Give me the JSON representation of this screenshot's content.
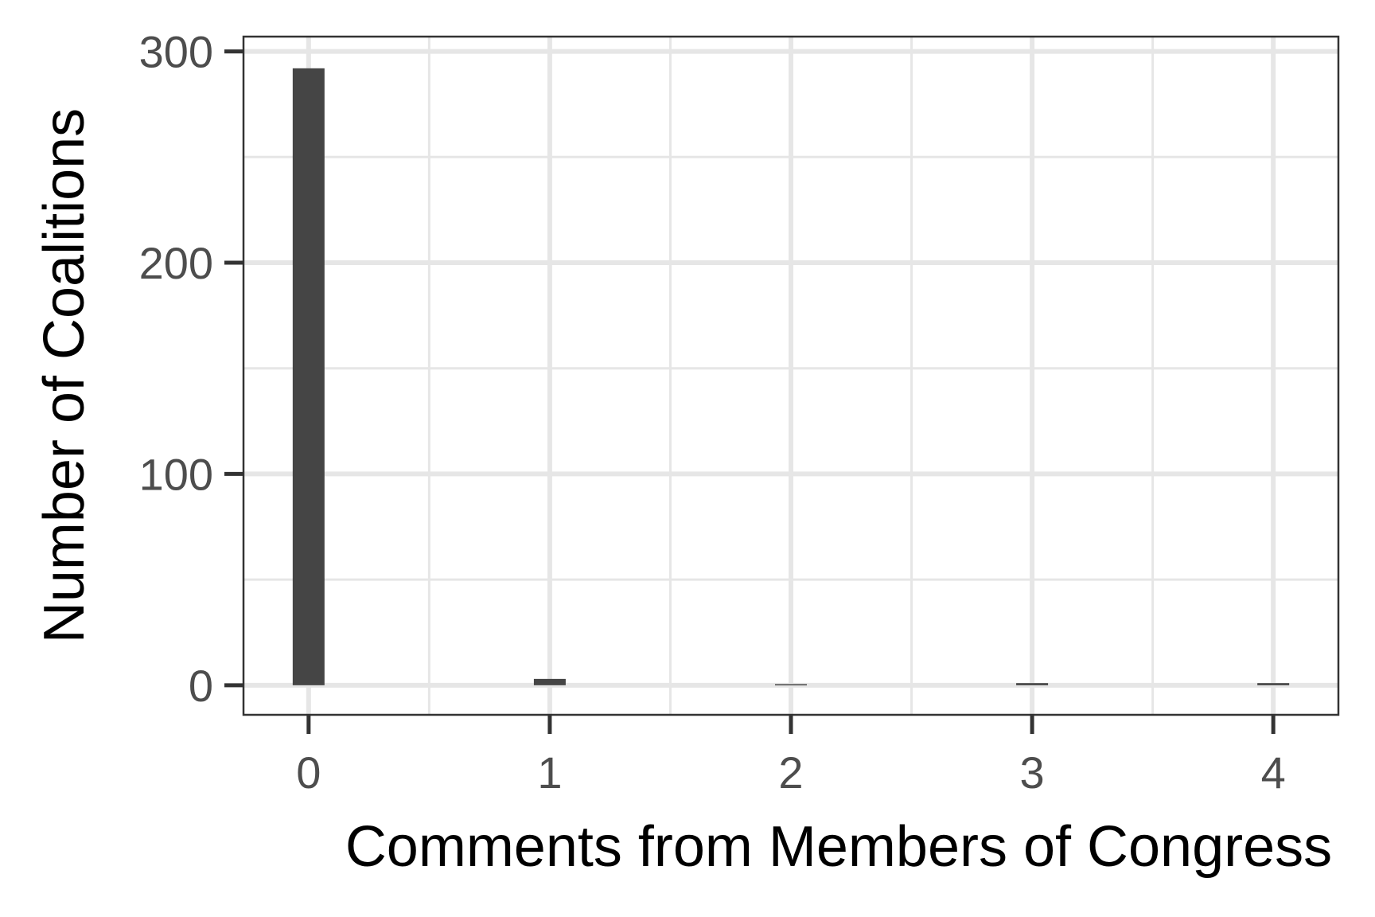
{
  "chart_data": {
    "type": "bar",
    "categories": [
      "0",
      "1",
      "2",
      "3",
      "4"
    ],
    "x": [
      0,
      1,
      2,
      3,
      4
    ],
    "values": [
      292,
      3,
      0.5,
      1,
      1
    ],
    "xlabel": "Comments from Members of Congress",
    "ylabel": "Number of Coalitions",
    "xlim": [
      -0.27,
      4.27
    ],
    "ylim": [
      -14,
      307
    ],
    "x_ticks": [
      "0",
      "1",
      "2",
      "3",
      "4"
    ],
    "y_ticks": [
      "0",
      "100",
      "200",
      "300"
    ],
    "y_tick_values": [
      0,
      100,
      200,
      300
    ],
    "y_minor_values": [
      50,
      150,
      250
    ],
    "x_minor_values": [
      0.5,
      1.5,
      2.5,
      3.5
    ],
    "grid": true,
    "legend": "none",
    "colors": {
      "bar": "#454545",
      "grid": "#e6e6e6",
      "panel_border": "#333333",
      "tick_label": "#4d4d4d",
      "axis_title": "#000000"
    }
  }
}
